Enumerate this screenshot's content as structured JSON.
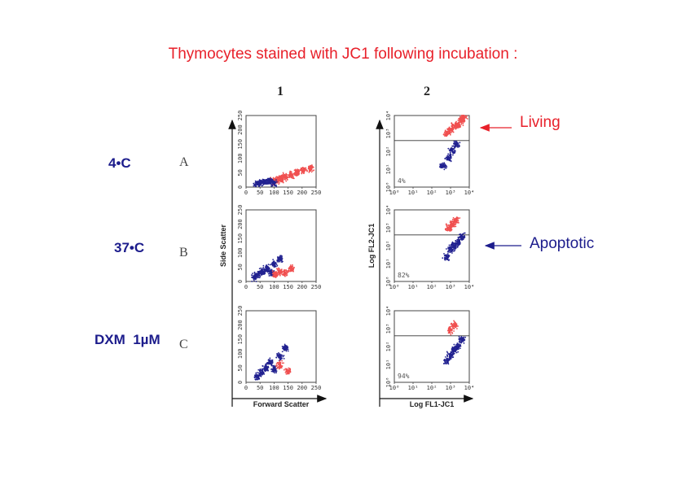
{
  "title": "Thymocytes stained with JC1 following incubation :",
  "columns": [
    "1",
    "2"
  ],
  "rows": [
    {
      "letter": "A",
      "condition": "4•C"
    },
    {
      "letter": "B",
      "condition": "37•C"
    },
    {
      "letter": "C",
      "condition": "DXM  1µM"
    }
  ],
  "annotations": {
    "living": "Living",
    "apoptotic": "Apoptotic"
  },
  "colors": {
    "title": "#e8202a",
    "living_population": "#f05050",
    "apoptotic_population": "#222290",
    "condition_label": "#1c1c8c"
  },
  "chart_data": [
    {
      "type": "scatter",
      "panel": "1A",
      "xlabel": "",
      "ylabel": "",
      "xlim": [
        0,
        250
      ],
      "ylim": [
        0,
        250
      ],
      "xticks": [
        "0",
        "50",
        "100",
        "150",
        "200",
        "250"
      ],
      "yticks": [
        "0",
        "50",
        "100",
        "150",
        "200",
        "250"
      ],
      "series": [
        {
          "color": "#f05050",
          "x": [
            95,
            110,
            125,
            140,
            160,
            180,
            205,
            230
          ],
          "y": [
            20,
            25,
            28,
            35,
            42,
            50,
            58,
            65
          ]
        },
        {
          "color": "#222290",
          "x": [
            40,
            55,
            70,
            85,
            100
          ],
          "y": [
            12,
            15,
            18,
            20,
            15
          ]
        }
      ]
    },
    {
      "type": "scatter",
      "panel": "1B",
      "xlabel": "",
      "ylabel": "Side Scatter",
      "xlim": [
        0,
        250
      ],
      "ylim": [
        0,
        250
      ],
      "xticks": [
        "0",
        "50",
        "100",
        "150",
        "200",
        "250"
      ],
      "yticks": [
        "0",
        "50",
        "100",
        "150",
        "200",
        "250"
      ],
      "series": [
        {
          "color": "#222290",
          "x": [
            30,
            45,
            60,
            75,
            90,
            100,
            120
          ],
          "y": [
            15,
            25,
            35,
            45,
            30,
            60,
            80
          ]
        },
        {
          "color": "#f05050",
          "x": [
            105,
            120,
            140,
            160
          ],
          "y": [
            25,
            35,
            30,
            45
          ]
        }
      ]
    },
    {
      "type": "scatter",
      "panel": "1C",
      "xlabel": "Forward Scatter",
      "ylabel": "",
      "xlim": [
        0,
        250
      ],
      "ylim": [
        0,
        250
      ],
      "xticks": [
        "0",
        "50",
        "100",
        "150",
        "200",
        "250"
      ],
      "yticks": [
        "0",
        "50",
        "100",
        "150",
        "200",
        "250"
      ],
      "series": [
        {
          "color": "#222290",
          "x": [
            40,
            55,
            70,
            85,
            100,
            120,
            140
          ],
          "y": [
            20,
            35,
            50,
            70,
            45,
            90,
            120
          ]
        },
        {
          "color": "#f05050",
          "x": [
            120,
            150
          ],
          "y": [
            60,
            40
          ]
        }
      ]
    },
    {
      "type": "scatter",
      "panel": "2A",
      "xlabel": "",
      "ylabel": "",
      "xlim": [
        0,
        4
      ],
      "ylim": [
        0,
        4
      ],
      "threshold_y": 2.6,
      "annotation": "4%",
      "xticks": [
        "10⁰",
        "10¹",
        "10²",
        "10³",
        "10⁴"
      ],
      "yticks": [
        "10⁰",
        "10¹",
        "10²",
        "10³",
        "10⁴"
      ],
      "series": [
        {
          "color": "#f05050",
          "x": [
            2.8,
            3.0,
            3.2,
            3.4,
            3.6,
            3.7
          ],
          "y": [
            3.0,
            3.2,
            3.4,
            3.5,
            3.7,
            3.9
          ]
        },
        {
          "color": "#222290",
          "x": [
            2.6,
            2.9,
            3.1,
            3.3
          ],
          "y": [
            1.2,
            1.6,
            2.0,
            2.4
          ]
        }
      ]
    },
    {
      "type": "scatter",
      "panel": "2B",
      "xlabel": "",
      "ylabel": "Log FL2-JC1",
      "xlim": [
        0,
        4
      ],
      "ylim": [
        0,
        4
      ],
      "threshold_y": 2.6,
      "annotation": "82%",
      "xticks": [
        "10⁰",
        "10¹",
        "10²",
        "10³",
        "10⁴"
      ],
      "yticks": [
        "10⁰",
        "10¹",
        "10²",
        "10³",
        "10⁴"
      ],
      "series": [
        {
          "color": "#f05050",
          "x": [
            2.9,
            3.1,
            3.3
          ],
          "y": [
            3.0,
            3.2,
            3.4
          ]
        },
        {
          "color": "#222290",
          "x": [
            2.8,
            3.0,
            3.2,
            3.4,
            3.6
          ],
          "y": [
            1.4,
            1.8,
            2.0,
            2.2,
            2.5
          ]
        }
      ]
    },
    {
      "type": "scatter",
      "panel": "2C",
      "xlabel": "Log FL1-JC1",
      "ylabel": "",
      "xlim": [
        0,
        4
      ],
      "ylim": [
        0,
        4
      ],
      "threshold_y": 2.6,
      "annotation": "94%",
      "xticks": [
        "10⁰",
        "10¹",
        "10²",
        "10³",
        "10⁴"
      ],
      "yticks": [
        "10⁰",
        "10¹",
        "10²",
        "10³",
        "10⁴"
      ],
      "series": [
        {
          "color": "#f05050",
          "x": [
            3.0,
            3.2
          ],
          "y": [
            2.9,
            3.2
          ]
        },
        {
          "color": "#222290",
          "x": [
            2.8,
            3.0,
            3.2,
            3.4,
            3.6
          ],
          "y": [
            1.2,
            1.5,
            1.8,
            2.0,
            2.4
          ]
        }
      ]
    }
  ]
}
